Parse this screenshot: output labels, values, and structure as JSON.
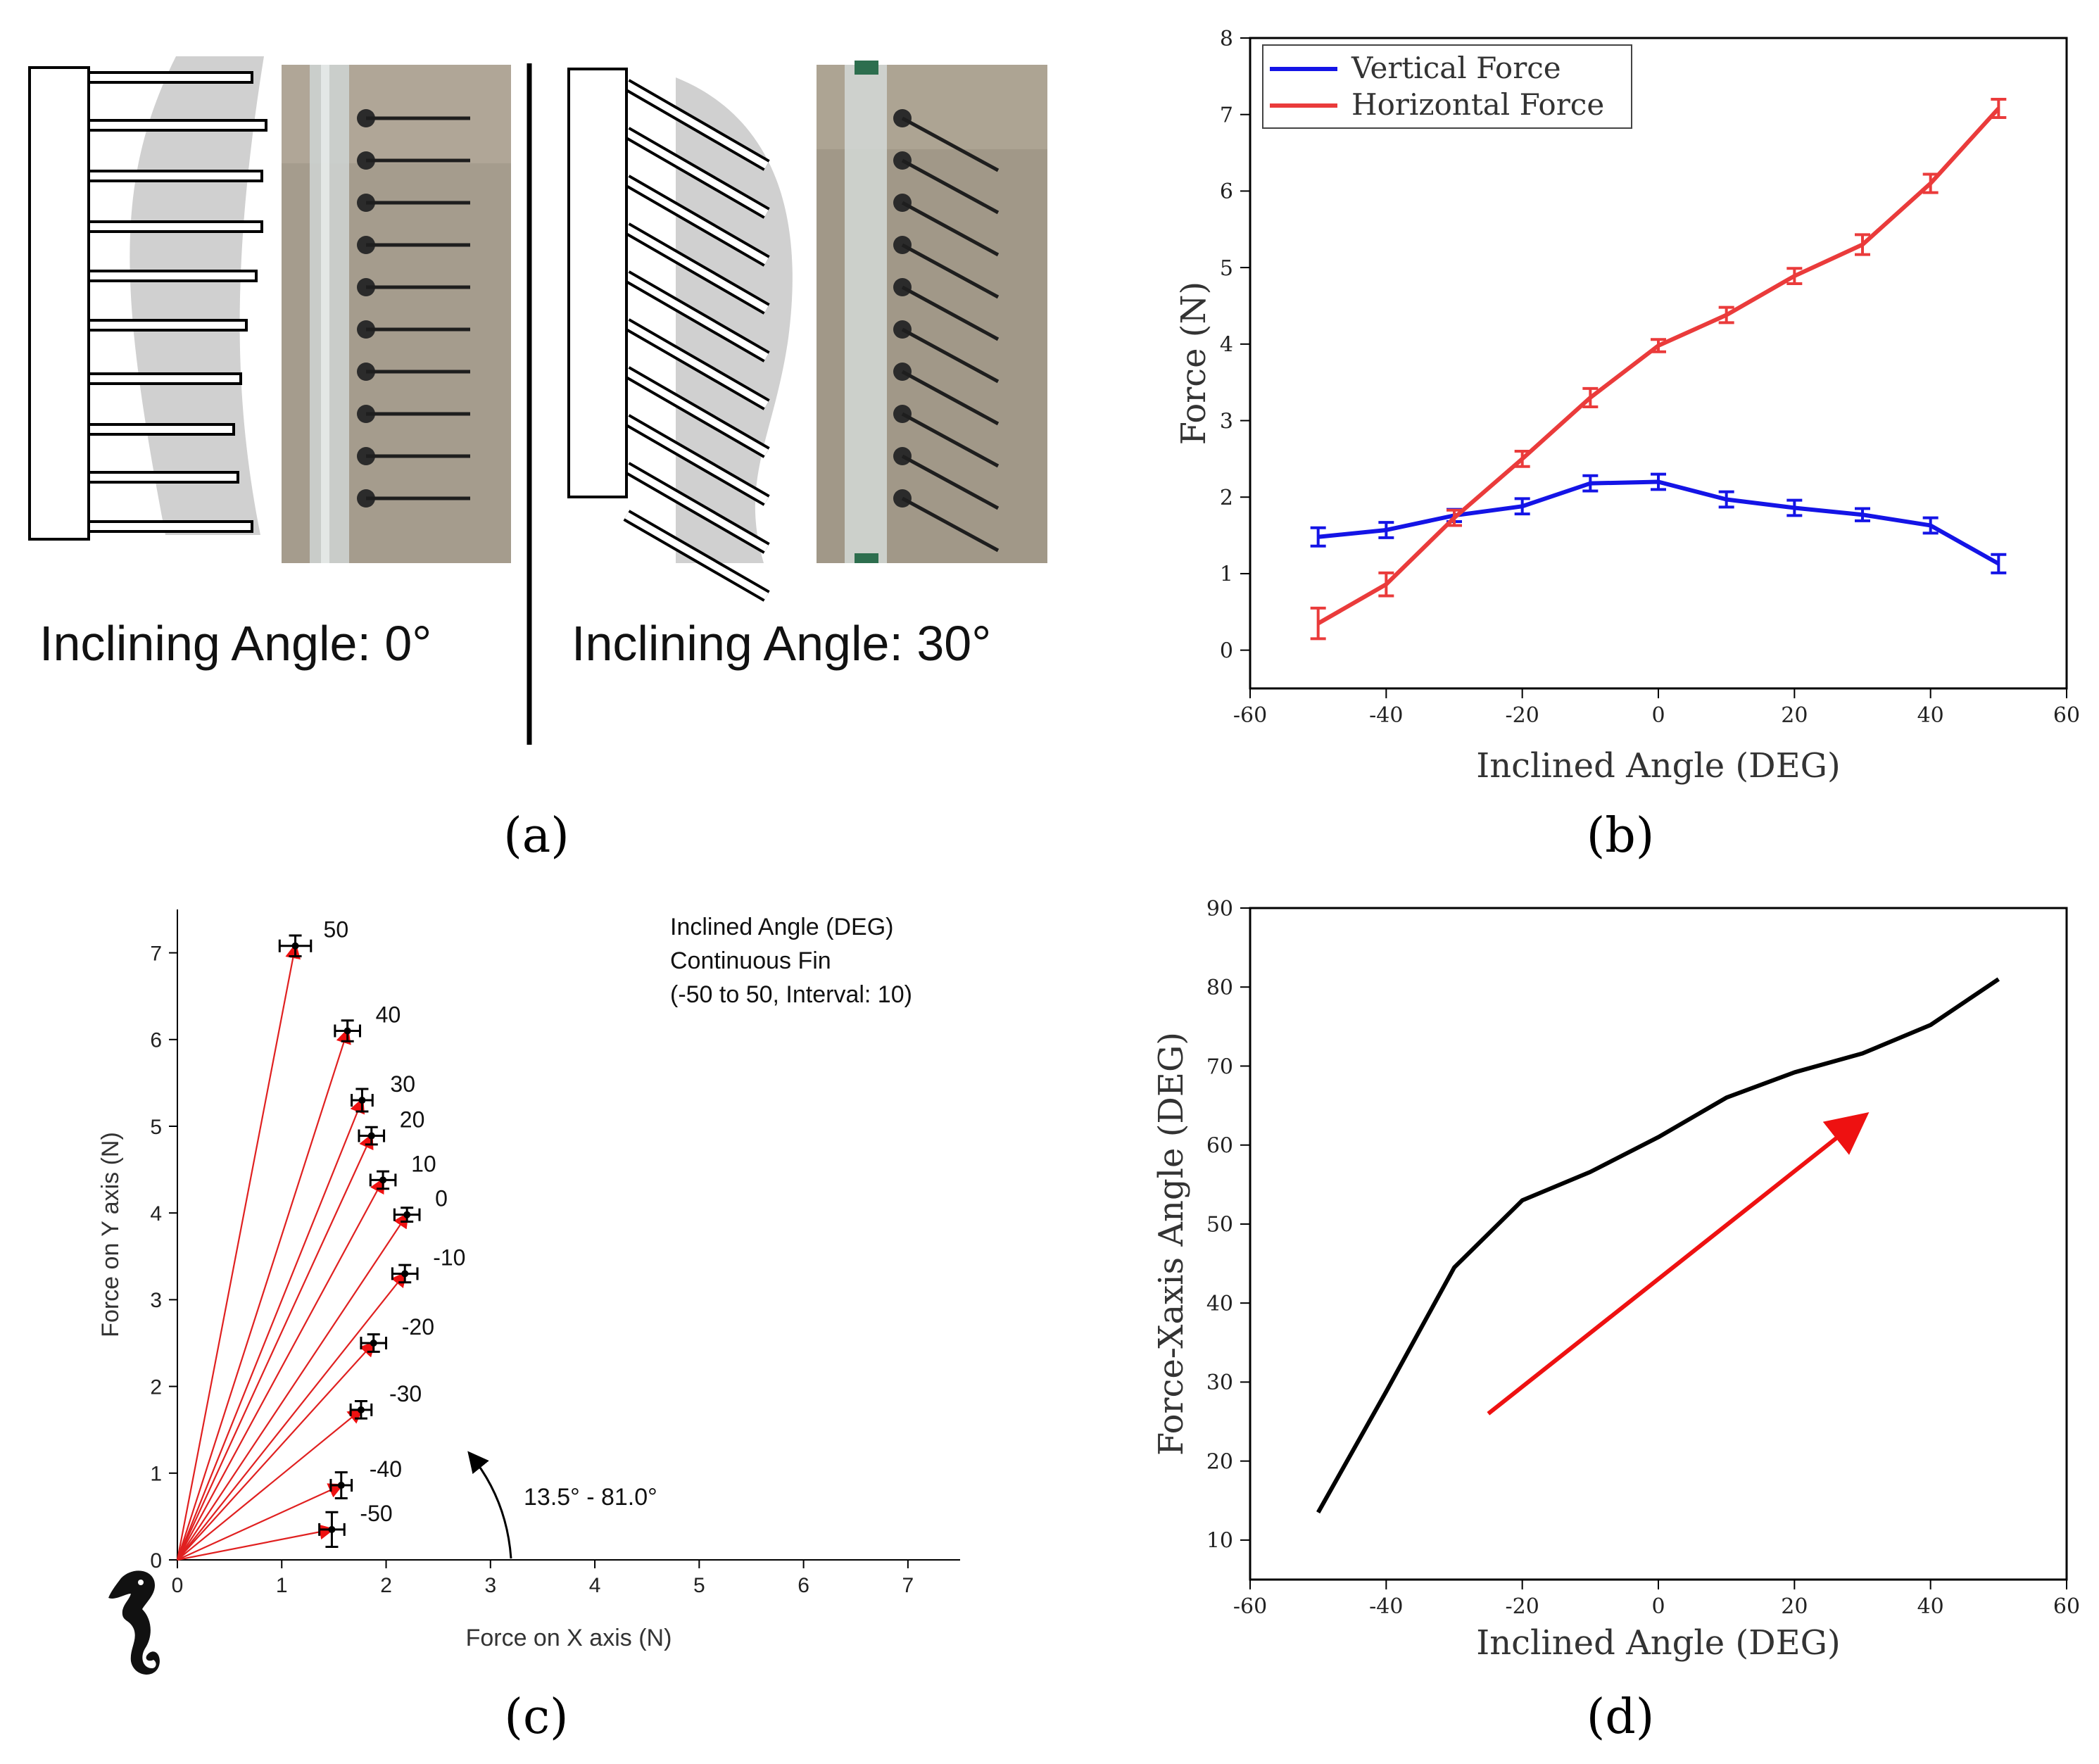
{
  "panel_labels": [
    "(a)",
    "(b)",
    "(c)",
    "(d)"
  ],
  "panel_a": {
    "left_caption": "Inclining Angle: 0°",
    "right_caption": "Inclining Angle: 30°"
  },
  "chart_data": [
    {
      "id": "b",
      "type": "line",
      "xlabel": "Inclined Angle (DEG)",
      "ylabel": "Force (N)",
      "xlim": [
        -60,
        60
      ],
      "ylim": [
        -0.5,
        8
      ],
      "xticks": [
        -60,
        -40,
        -20,
        0,
        20,
        40,
        60
      ],
      "yticks": [
        0,
        1,
        2,
        3,
        4,
        5,
        6,
        7,
        8
      ],
      "legend_position": "top-left",
      "x": [
        -50,
        -40,
        -30,
        -20,
        -10,
        0,
        10,
        20,
        30,
        40,
        50
      ],
      "series": [
        {
          "name": "Vertical Force",
          "color": "#1414e6",
          "values": [
            1.48,
            1.57,
            1.76,
            1.88,
            2.18,
            2.2,
            1.97,
            1.86,
            1.77,
            1.63,
            1.13
          ],
          "err": [
            0.12,
            0.1,
            0.08,
            0.1,
            0.1,
            0.1,
            0.1,
            0.1,
            0.08,
            0.1,
            0.12
          ]
        },
        {
          "name": "Horizontal Force",
          "color": "#ea3b3b",
          "values": [
            0.35,
            0.86,
            1.73,
            2.5,
            3.3,
            3.98,
            4.38,
            4.89,
            5.3,
            6.1,
            7.08
          ],
          "err": [
            0.2,
            0.15,
            0.1,
            0.1,
            0.12,
            0.08,
            0.1,
            0.1,
            0.13,
            0.12,
            0.12
          ]
        }
      ]
    },
    {
      "id": "c",
      "type": "scatter",
      "xlabel": "Force on X axis (N)",
      "ylabel": "Force on Y axis (N)",
      "xlim": [
        0,
        7.5
      ],
      "ylim": [
        0,
        7.5
      ],
      "xticks": [
        0,
        1,
        2,
        3,
        4,
        5,
        6,
        7
      ],
      "yticks": [
        0,
        1,
        2,
        3,
        4,
        5,
        6,
        7
      ],
      "annotation": [
        "Inclined Angle  (DEG)",
        "Continuous Fin",
        "(-50 to 50,  Interval: 10)"
      ],
      "angle_range_label": "13.5° - 81.0°",
      "points": [
        {
          "label": "50",
          "x": 1.13,
          "y": 7.08,
          "xerr": 0.15,
          "yerr": 0.12
        },
        {
          "label": "40",
          "x": 1.63,
          "y": 6.1,
          "xerr": 0.12,
          "yerr": 0.12
        },
        {
          "label": "30",
          "x": 1.77,
          "y": 5.3,
          "xerr": 0.1,
          "yerr": 0.13
        },
        {
          "label": "20",
          "x": 1.86,
          "y": 4.89,
          "xerr": 0.12,
          "yerr": 0.1
        },
        {
          "label": "10",
          "x": 1.97,
          "y": 4.38,
          "xerr": 0.12,
          "yerr": 0.1
        },
        {
          "label": "0",
          "x": 2.2,
          "y": 3.98,
          "xerr": 0.12,
          "yerr": 0.08
        },
        {
          "label": "-10",
          "x": 2.18,
          "y": 3.3,
          "xerr": 0.12,
          "yerr": 0.1
        },
        {
          "label": "-20",
          "x": 1.88,
          "y": 2.5,
          "xerr": 0.12,
          "yerr": 0.1
        },
        {
          "label": "-30",
          "x": 1.76,
          "y": 1.73,
          "xerr": 0.1,
          "yerr": 0.1
        },
        {
          "label": "-40",
          "x": 1.57,
          "y": 0.86,
          "xerr": 0.1,
          "yerr": 0.15
        },
        {
          "label": "-50",
          "x": 1.48,
          "y": 0.35,
          "xerr": 0.12,
          "yerr": 0.2
        }
      ]
    },
    {
      "id": "d",
      "type": "line",
      "xlabel": "Inclined Angle (DEG)",
      "ylabel": "Force-Xaxis Angle (DEG)",
      "xlim": [
        -60,
        60
      ],
      "ylim": [
        5,
        90
      ],
      "xticks": [
        -60,
        -40,
        -20,
        0,
        20,
        40,
        60
      ],
      "yticks": [
        10,
        20,
        30,
        40,
        50,
        60,
        70,
        80,
        90
      ],
      "x": [
        -50,
        -40,
        -30,
        -20,
        -10,
        0,
        10,
        20,
        30,
        40,
        50
      ],
      "series": [
        {
          "name": "Force-Xaxis Angle",
          "color": "#000000",
          "values": [
            13.5,
            28.8,
            44.5,
            53.0,
            56.6,
            61.0,
            66.0,
            69.2,
            71.6,
            75.2,
            81.0
          ]
        }
      ],
      "arrow": {
        "from": [
          -25,
          26
        ],
        "to": [
          30,
          63.5
        ],
        "color": "#ee1111"
      }
    }
  ]
}
